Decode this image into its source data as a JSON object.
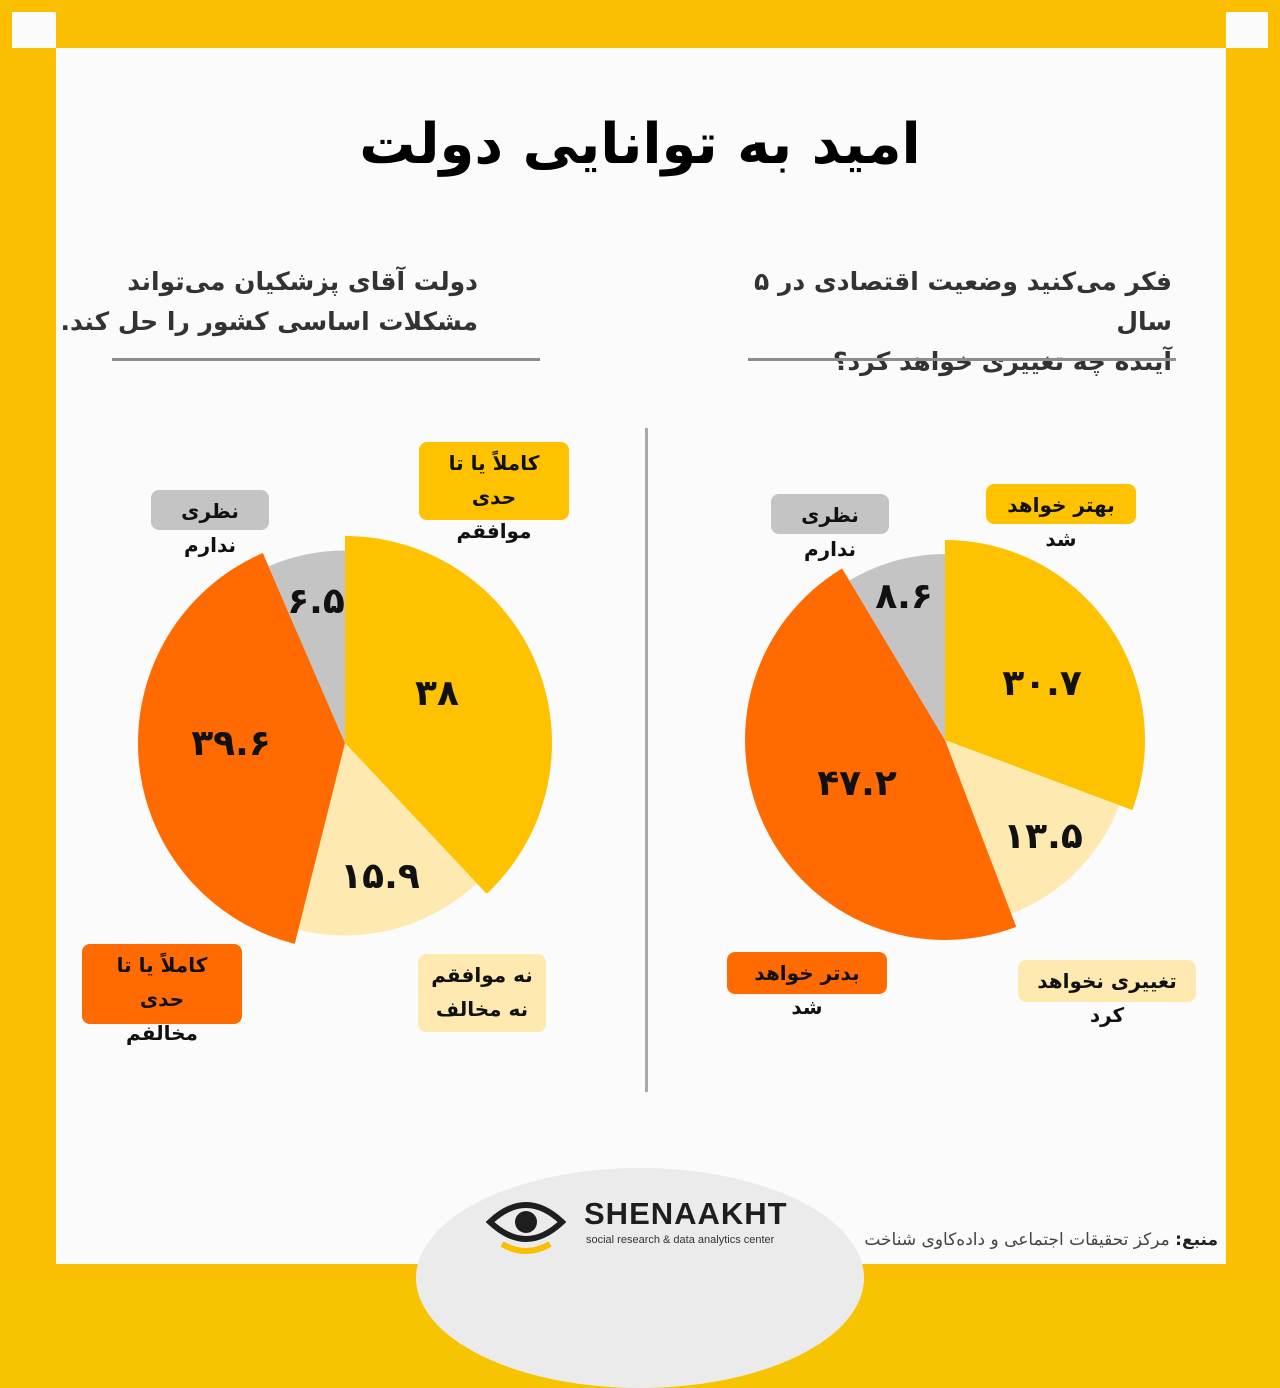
{
  "title": "امید به توانایی دولت",
  "questions": {
    "right": [
      "فکر می‌کنید وضعیت اقتصادی در ۵ سال",
      "آینده چه تغییری خواهد کرد؟"
    ],
    "left": [
      "دولت آقای پزشکیان می‌تواند",
      "مشکلات اساسی کشور را حل کند."
    ]
  },
  "colors": {
    "frame": "#f9bf00",
    "yellow": "#fec200",
    "orange": "#ff6b00",
    "cream": "#feeab0",
    "gray": "#c4c4c4"
  },
  "chart_data": [
    {
      "type": "pie",
      "position": "right",
      "slices": [
        {
          "label": "بهتر خواهد شد",
          "value": 30.7,
          "display": "۳۰.۷",
          "color": "#fec200"
        },
        {
          "label": "تغییری نخواهد کرد",
          "value": 13.5,
          "display": "۱۳.۵",
          "color": "#feeab0"
        },
        {
          "label": "بدتر خواهد شد",
          "value": 47.2,
          "display": "۴۷.۲",
          "color": "#ff6b00"
        },
        {
          "label": "نظری ندارم",
          "value": 8.6,
          "display": "۸.۶",
          "color": "#c4c4c4"
        }
      ]
    },
    {
      "type": "pie",
      "position": "left",
      "slices": [
        {
          "label": "کاملاً یا تا حدی موافقم",
          "value": 38,
          "display": "۳۸",
          "color": "#fec200"
        },
        {
          "label": "نه موافقم نه مخالف",
          "value": 15.9,
          "display": "۱۵.۹",
          "color": "#feeab0"
        },
        {
          "label": "کاملاً یا تا حدی مخالفم",
          "value": 39.6,
          "display": "۳۹.۶",
          "color": "#ff6b00"
        },
        {
          "label": "نظری ندارم",
          "value": 6.5,
          "display": "۶.۵",
          "color": "#c4c4c4"
        }
      ]
    }
  ],
  "legend_tags": {
    "right": [
      {
        "lines": [
          "بهتر خواهد شد"
        ],
        "color": "#fec200"
      },
      {
        "lines": [
          "تغییری نخواهد کرد"
        ],
        "color": "#feeab0"
      },
      {
        "lines": [
          "بدتر خواهد شد"
        ],
        "color": "#ff6b00"
      },
      {
        "lines": [
          "نظری ندارم"
        ],
        "color": "#c4c4c4"
      }
    ],
    "left": [
      {
        "lines": [
          "کاملاً یا تا حدی",
          "موافقم"
        ],
        "color": "#fec200"
      },
      {
        "lines": [
          "نه موافقم",
          "نه مخالف"
        ],
        "color": "#feeab0"
      },
      {
        "lines": [
          "کاملاً یا تا حدی",
          "مخالفم"
        ],
        "color": "#ff6b00"
      },
      {
        "lines": [
          "نظری ندارم"
        ],
        "color": "#c4c4c4"
      }
    ]
  },
  "brand": {
    "name": "SHENAAKHT",
    "tagline": "social research & data analytics center"
  },
  "source": {
    "label": "منبع:",
    "text": "مرکز تحقیقات اجتماعی و داده‌کاوی شناخت"
  }
}
